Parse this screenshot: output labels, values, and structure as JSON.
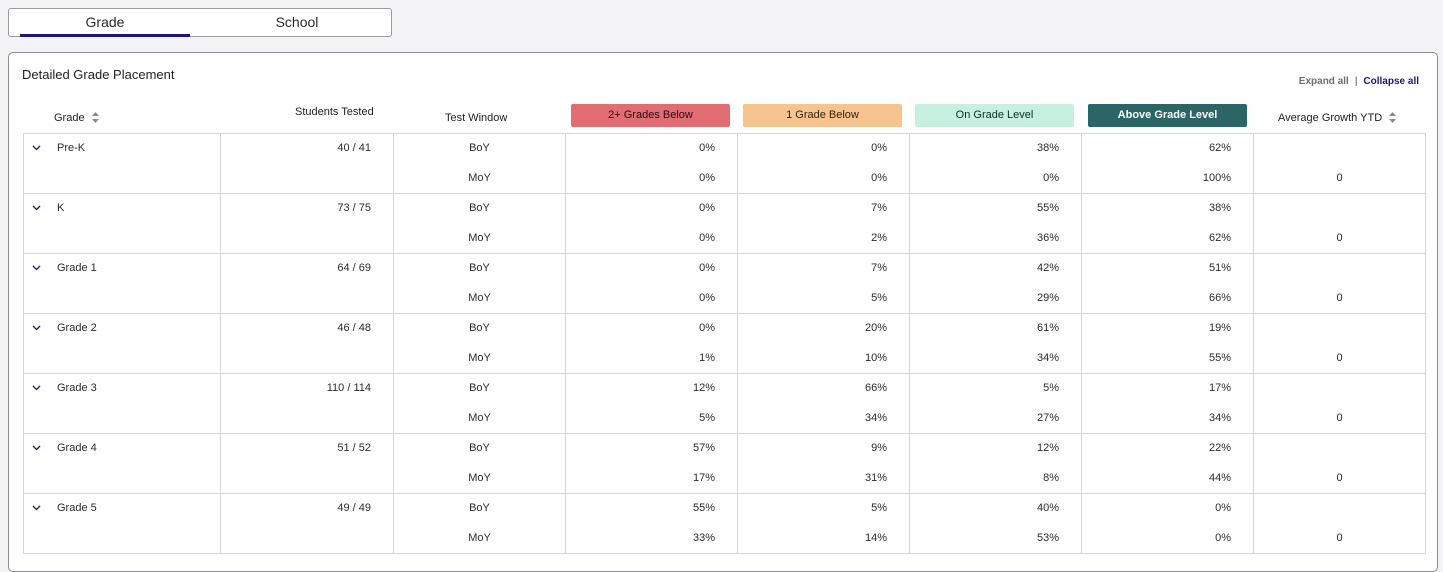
{
  "tabs": [
    {
      "label": "Grade",
      "active": true
    },
    {
      "label": "School",
      "active": false
    }
  ],
  "panel": {
    "title": "Detailed Grade Placement",
    "expand_all": "Expand all",
    "separator": "|",
    "collapse_all": "Collapse all"
  },
  "headers": {
    "grade": "Grade",
    "students_tested": "Students Tested",
    "test_window": "Test Window",
    "two_below": "2+ Grades Below",
    "one_below": "1 Grade Below",
    "on_level": "On Grade Level",
    "above_level": "Above Grade Level",
    "avg_growth": "Average Growth YTD"
  },
  "colors": {
    "two_below": "#e16d72",
    "one_below": "#f7c48f",
    "on_level": "#c6f0df",
    "above_level": "#2c6566",
    "accent": "#1b1a6e"
  },
  "rows": [
    {
      "grade": "Pre-K",
      "students": "40 / 41",
      "boy": {
        "window": "BoY",
        "two_below": "0%",
        "one_below": "0%",
        "on_level": "38%",
        "above": "62%",
        "growth": ""
      },
      "moy": {
        "window": "MoY",
        "two_below": "0%",
        "one_below": "0%",
        "on_level": "0%",
        "above": "100%",
        "growth": "0"
      }
    },
    {
      "grade": "K",
      "students": "73 / 75",
      "boy": {
        "window": "BoY",
        "two_below": "0%",
        "one_below": "7%",
        "on_level": "55%",
        "above": "38%",
        "growth": ""
      },
      "moy": {
        "window": "MoY",
        "two_below": "0%",
        "one_below": "2%",
        "on_level": "36%",
        "above": "62%",
        "growth": "0"
      }
    },
    {
      "grade": "Grade 1",
      "students": "64 / 69",
      "boy": {
        "window": "BoY",
        "two_below": "0%",
        "one_below": "7%",
        "on_level": "42%",
        "above": "51%",
        "growth": ""
      },
      "moy": {
        "window": "MoY",
        "two_below": "0%",
        "one_below": "5%",
        "on_level": "29%",
        "above": "66%",
        "growth": "0"
      }
    },
    {
      "grade": "Grade 2",
      "students": "46 / 48",
      "boy": {
        "window": "BoY",
        "two_below": "0%",
        "one_below": "20%",
        "on_level": "61%",
        "above": "19%",
        "growth": ""
      },
      "moy": {
        "window": "MoY",
        "two_below": "1%",
        "one_below": "10%",
        "on_level": "34%",
        "above": "55%",
        "growth": "0"
      }
    },
    {
      "grade": "Grade 3",
      "students": "110 / 114",
      "boy": {
        "window": "BoY",
        "two_below": "12%",
        "one_below": "66%",
        "on_level": "5%",
        "above": "17%",
        "growth": ""
      },
      "moy": {
        "window": "MoY",
        "two_below": "5%",
        "one_below": "34%",
        "on_level": "27%",
        "above": "34%",
        "growth": "0"
      }
    },
    {
      "grade": "Grade 4",
      "students": "51 / 52",
      "boy": {
        "window": "BoY",
        "two_below": "57%",
        "one_below": "9%",
        "on_level": "12%",
        "above": "22%",
        "growth": ""
      },
      "moy": {
        "window": "MoY",
        "two_below": "17%",
        "one_below": "31%",
        "on_level": "8%",
        "above": "44%",
        "growth": "0"
      }
    },
    {
      "grade": "Grade 5",
      "students": "49 / 49",
      "boy": {
        "window": "BoY",
        "two_below": "55%",
        "one_below": "5%",
        "on_level": "40%",
        "above": "0%",
        "growth": ""
      },
      "moy": {
        "window": "MoY",
        "two_below": "33%",
        "one_below": "14%",
        "on_level": "53%",
        "above": "0%",
        "growth": "0"
      }
    }
  ]
}
